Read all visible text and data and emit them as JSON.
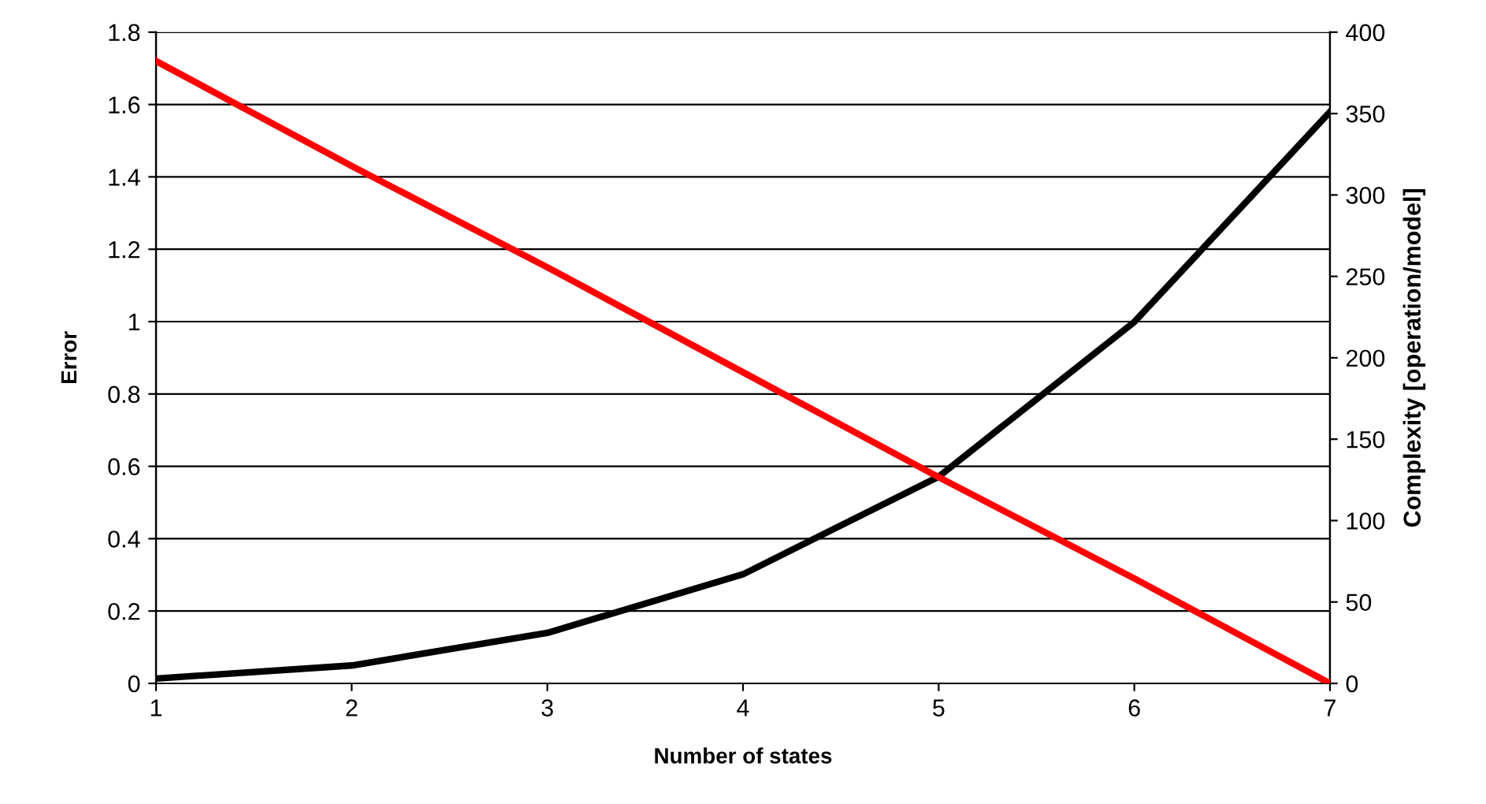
{
  "chart_data": {
    "type": "line",
    "xlabel": "Number of states",
    "ylabel": "Error",
    "y2label": "Complexity [operation/model]",
    "x": [
      1,
      2,
      3,
      4,
      5,
      6,
      7
    ],
    "series": [
      {
        "color": "#ff0000",
        "values": [
          1.72,
          1.43,
          1.15,
          0.86,
          0.57,
          0.29,
          0
        ]
      },
      {
        "color": "#000000",
        "axis": "y2",
        "values": [
          3,
          11,
          31,
          67,
          127,
          222,
          351
        ]
      }
    ],
    "xlim": [
      1,
      7
    ],
    "xticks": [
      1,
      2,
      3,
      4,
      5,
      6,
      7
    ],
    "ylim": [
      0,
      1.8
    ],
    "yticks": [
      0,
      0.2,
      0.4,
      0.6,
      0.8,
      1,
      1.2,
      1.4,
      1.6,
      1.8
    ],
    "y2lim": [
      0,
      400
    ],
    "y2ticks": [
      0,
      50,
      100,
      150,
      200,
      250,
      300,
      350,
      400
    ],
    "grid": "y",
    "marker": "none",
    "line_style": "solid"
  }
}
